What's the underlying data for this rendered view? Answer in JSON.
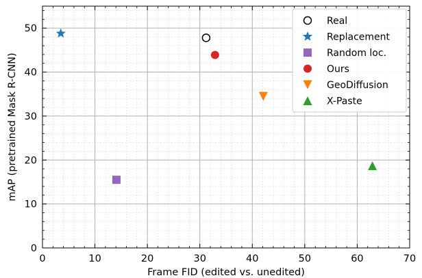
{
  "chart_data": {
    "type": "scatter",
    "title": "",
    "xlabel": "Frame FID (edited vs. unedited)",
    "ylabel": "mAP (pretrained Mask R-CNN)",
    "xlim": [
      0,
      70
    ],
    "ylim": [
      0,
      55
    ],
    "x_ticks": [
      0,
      10,
      20,
      30,
      40,
      50,
      60,
      70
    ],
    "y_ticks": [
      0,
      10,
      20,
      30,
      40,
      50
    ],
    "grid": "major and minor",
    "legend_position": "top-right",
    "series": [
      {
        "name": "Real",
        "marker": "open-circle",
        "color": "#000000",
        "points": [
          {
            "x": 31.2,
            "y": 47.8
          }
        ]
      },
      {
        "name": "Replacement",
        "marker": "star",
        "color": "#1f77b4",
        "points": [
          {
            "x": 3.5,
            "y": 48.8
          }
        ]
      },
      {
        "name": "Random loc.",
        "marker": "square",
        "color": "#9467bd",
        "points": [
          {
            "x": 14.1,
            "y": 15.5
          }
        ]
      },
      {
        "name": "Ours",
        "marker": "circle",
        "color": "#d62728",
        "points": [
          {
            "x": 32.9,
            "y": 43.9
          }
        ]
      },
      {
        "name": "GeoDiffusion",
        "marker": "triangle-down",
        "color": "#ff7f0e",
        "points": [
          {
            "x": 42.1,
            "y": 34.5
          }
        ]
      },
      {
        "name": "X-Paste",
        "marker": "triangle-up",
        "color": "#2ca02c",
        "points": [
          {
            "x": 62.9,
            "y": 18.7
          }
        ]
      }
    ]
  }
}
